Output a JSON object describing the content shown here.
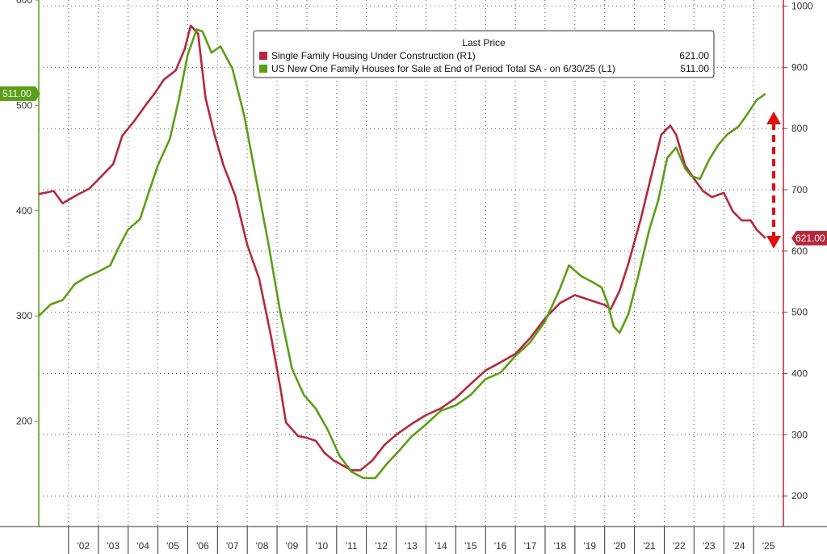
{
  "chart_data": {
    "type": "line",
    "title": "",
    "legend": {
      "header": "Last Price",
      "position": "top-center",
      "entries": [
        {
          "label": "Single Family Housing Under Construction  (R1)",
          "value": "621.00",
          "color": "#b5283c"
        },
        {
          "label": "US New One Family Houses for Sale at End of Period Total SA -  on 6/30/25  (L1)",
          "value": "511.00",
          "color": "#5c9e16"
        }
      ]
    },
    "x_axis": {
      "range": [
        2001.0,
        2026.0
      ],
      "labels": [
        "'02",
        "'03",
        "'04",
        "'05",
        "'06",
        "'07",
        "'08",
        "'09",
        "'10",
        "'11",
        "'12",
        "'13",
        "'14",
        "'15",
        "'16",
        "'17",
        "'18",
        "'19",
        "'20",
        "'21",
        "'22",
        "'23",
        "'24",
        "'25"
      ]
    },
    "left_axis": {
      "range": [
        100,
        600
      ],
      "ticks": [
        200,
        300,
        400,
        500,
        600
      ],
      "series": "US New One Family Houses for Sale (L1)"
    },
    "right_axis": {
      "range": [
        150,
        1010
      ],
      "ticks": [
        200,
        300,
        400,
        500,
        600,
        700,
        800,
        900,
        1000
      ],
      "series": "Single Family Housing Under Construction (R1)"
    },
    "grid": true,
    "last_value_tags": {
      "left": "511.00",
      "right": "621.00"
    },
    "annotation": "red dashed double-headed arrow between the two series at the latest date",
    "series": [
      {
        "name": "Single Family Housing Under Construction (R1)",
        "axis": "right",
        "color": "#b5283c",
        "points": [
          [
            2001.0,
            693
          ],
          [
            2001.5,
            698
          ],
          [
            2001.8,
            678
          ],
          [
            2002.3,
            692
          ],
          [
            2002.7,
            702
          ],
          [
            2003.0,
            717
          ],
          [
            2003.5,
            742
          ],
          [
            2003.8,
            788
          ],
          [
            2004.2,
            812
          ],
          [
            2004.6,
            839
          ],
          [
            2004.9,
            858
          ],
          [
            2005.2,
            880
          ],
          [
            2005.6,
            895
          ],
          [
            2005.9,
            930
          ],
          [
            2006.1,
            968
          ],
          [
            2006.35,
            955
          ],
          [
            2006.6,
            850
          ],
          [
            2006.9,
            790
          ],
          [
            2007.2,
            740
          ],
          [
            2007.6,
            690
          ],
          [
            2008.0,
            610
          ],
          [
            2008.4,
            555
          ],
          [
            2008.8,
            460
          ],
          [
            2009.1,
            380
          ],
          [
            2009.3,
            320
          ],
          [
            2009.7,
            298
          ],
          [
            2010.0,
            295
          ],
          [
            2010.3,
            290
          ],
          [
            2010.6,
            270
          ],
          [
            2010.9,
            258
          ],
          [
            2011.2,
            250
          ],
          [
            2011.5,
            242
          ],
          [
            2011.8,
            242
          ],
          [
            2012.2,
            258
          ],
          [
            2012.6,
            283
          ],
          [
            2013.0,
            300
          ],
          [
            2013.5,
            317
          ],
          [
            2014.0,
            332
          ],
          [
            2014.5,
            343
          ],
          [
            2015.0,
            360
          ],
          [
            2015.5,
            383
          ],
          [
            2016.0,
            405
          ],
          [
            2016.5,
            418
          ],
          [
            2017.0,
            432
          ],
          [
            2017.5,
            458
          ],
          [
            2018.0,
            490
          ],
          [
            2018.5,
            515
          ],
          [
            2019.0,
            528
          ],
          [
            2019.5,
            520
          ],
          [
            2020.0,
            512
          ],
          [
            2020.2,
            505
          ],
          [
            2020.5,
            535
          ],
          [
            2020.8,
            580
          ],
          [
            2021.2,
            650
          ],
          [
            2021.6,
            730
          ],
          [
            2021.9,
            790
          ],
          [
            2022.2,
            805
          ],
          [
            2022.4,
            790
          ],
          [
            2022.7,
            740
          ],
          [
            2023.0,
            718
          ],
          [
            2023.3,
            698
          ],
          [
            2023.6,
            688
          ],
          [
            2024.0,
            695
          ],
          [
            2024.3,
            665
          ],
          [
            2024.6,
            650
          ],
          [
            2024.9,
            650
          ],
          [
            2025.1,
            635
          ],
          [
            2025.4,
            621
          ]
        ]
      },
      {
        "name": "US New One Family Houses for Sale (L1)",
        "axis": "left",
        "color": "#5c9e16",
        "points": [
          [
            2001.0,
            300
          ],
          [
            2001.4,
            311
          ],
          [
            2001.8,
            315
          ],
          [
            2002.2,
            330
          ],
          [
            2002.6,
            337
          ],
          [
            2003.0,
            342
          ],
          [
            2003.4,
            348
          ],
          [
            2003.7,
            366
          ],
          [
            2004.0,
            382
          ],
          [
            2004.4,
            392
          ],
          [
            2004.7,
            418
          ],
          [
            2005.0,
            443
          ],
          [
            2005.4,
            468
          ],
          [
            2005.7,
            505
          ],
          [
            2006.0,
            548
          ],
          [
            2006.3,
            572
          ],
          [
            2006.5,
            570
          ],
          [
            2006.8,
            550
          ],
          [
            2007.1,
            556
          ],
          [
            2007.5,
            535
          ],
          [
            2007.9,
            490
          ],
          [
            2008.3,
            430
          ],
          [
            2008.7,
            370
          ],
          [
            2009.1,
            305
          ],
          [
            2009.5,
            250
          ],
          [
            2009.9,
            225
          ],
          [
            2010.3,
            212
          ],
          [
            2010.7,
            192
          ],
          [
            2011.1,
            167
          ],
          [
            2011.5,
            152
          ],
          [
            2011.9,
            146
          ],
          [
            2012.3,
            146
          ],
          [
            2012.7,
            160
          ],
          [
            2013.1,
            172
          ],
          [
            2013.5,
            185
          ],
          [
            2014.0,
            197
          ],
          [
            2014.5,
            210
          ],
          [
            2015.0,
            215
          ],
          [
            2015.5,
            225
          ],
          [
            2016.0,
            240
          ],
          [
            2016.5,
            246
          ],
          [
            2017.0,
            262
          ],
          [
            2017.5,
            275
          ],
          [
            2018.0,
            295
          ],
          [
            2018.5,
            326
          ],
          [
            2018.8,
            348
          ],
          [
            2019.2,
            338
          ],
          [
            2019.6,
            332
          ],
          [
            2019.9,
            327
          ],
          [
            2020.1,
            312
          ],
          [
            2020.3,
            290
          ],
          [
            2020.5,
            284
          ],
          [
            2020.8,
            302
          ],
          [
            2021.1,
            335
          ],
          [
            2021.5,
            382
          ],
          [
            2021.8,
            410
          ],
          [
            2022.1,
            450
          ],
          [
            2022.4,
            460
          ],
          [
            2022.7,
            440
          ],
          [
            2022.9,
            433
          ],
          [
            2023.2,
            430
          ],
          [
            2023.5,
            448
          ],
          [
            2023.8,
            462
          ],
          [
            2024.1,
            472
          ],
          [
            2024.5,
            480
          ],
          [
            2024.8,
            492
          ],
          [
            2025.1,
            505
          ],
          [
            2025.4,
            511
          ]
        ]
      }
    ]
  }
}
